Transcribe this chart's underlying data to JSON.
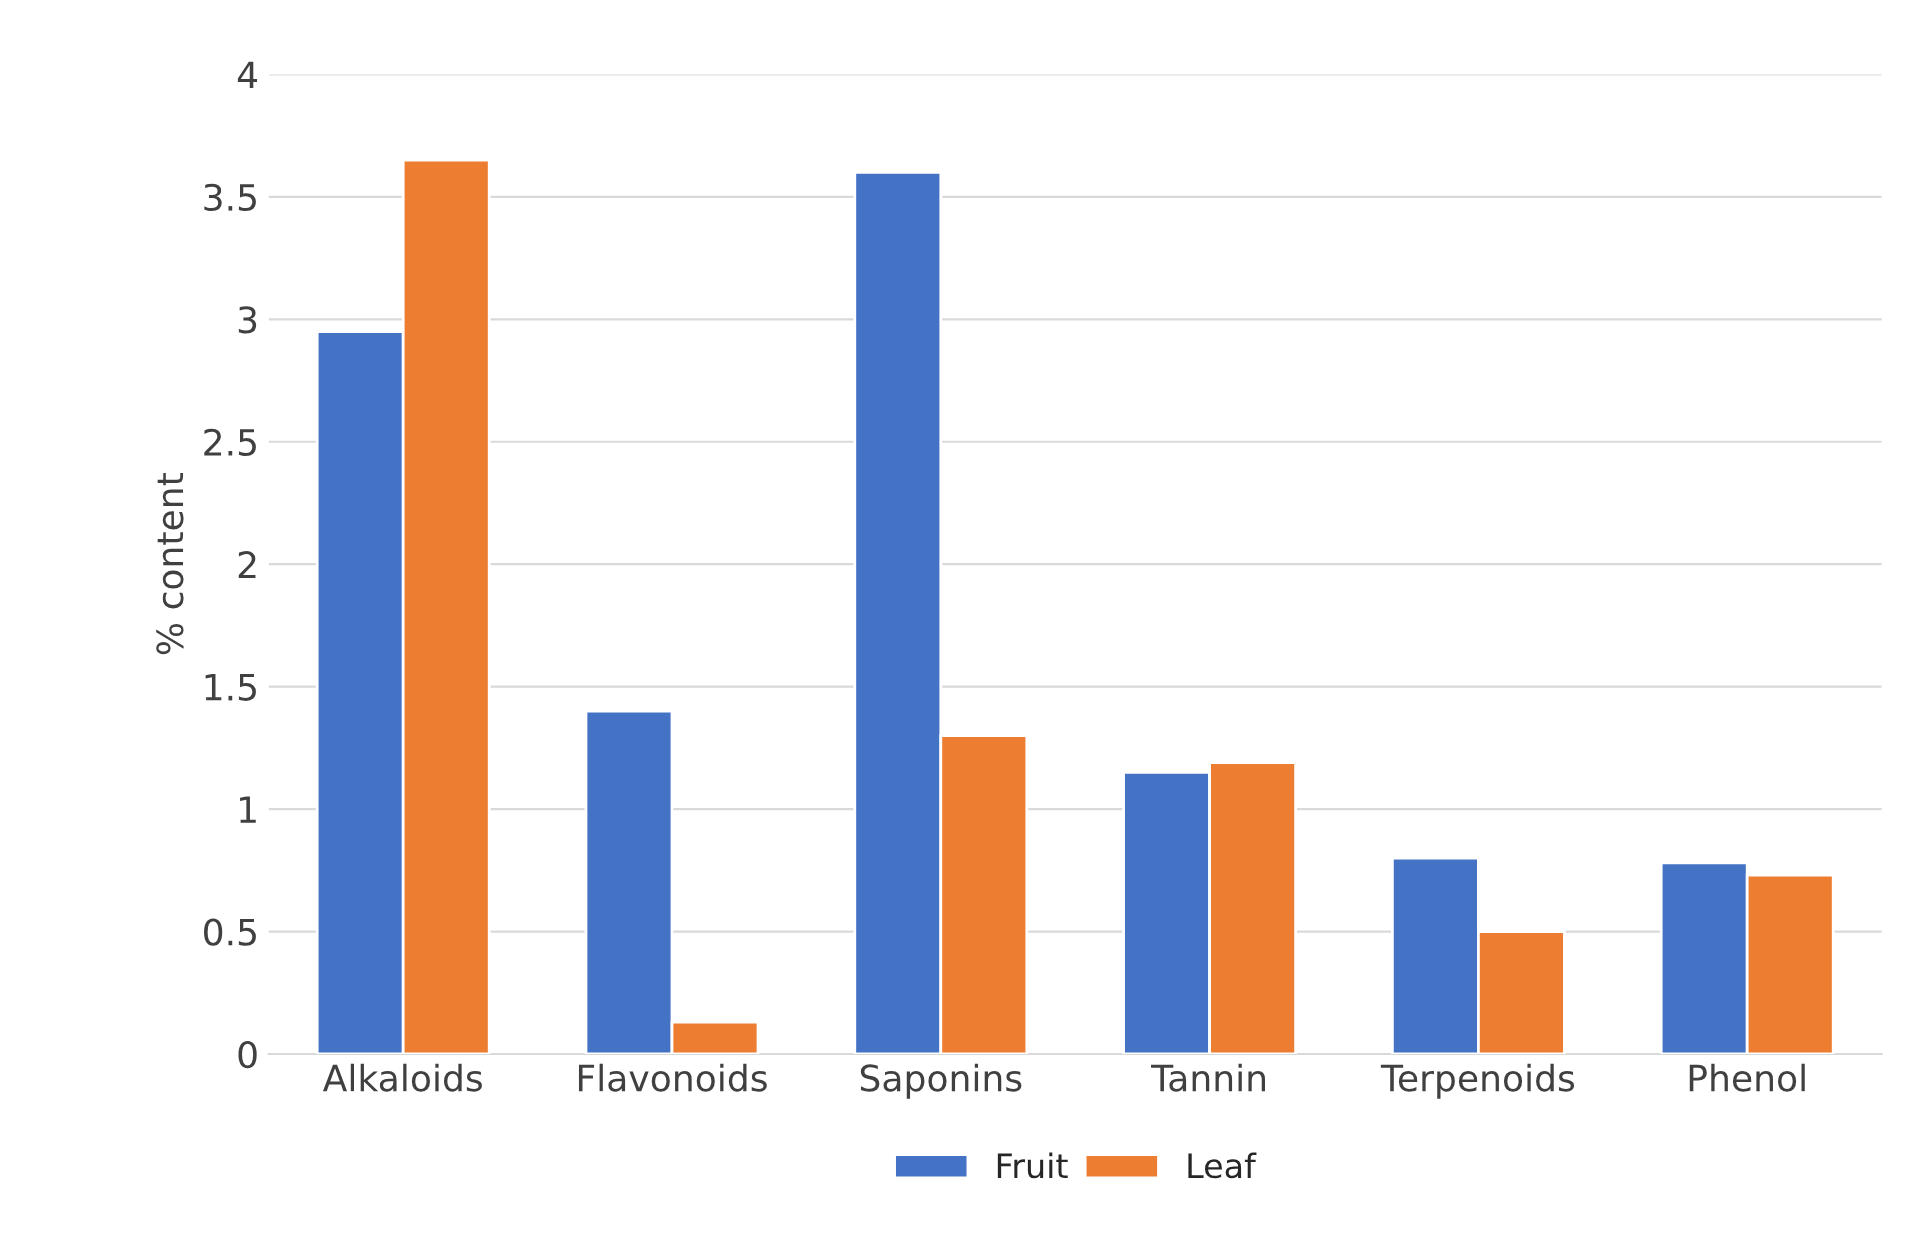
{
  "chart_data": {
    "type": "bar",
    "ylabel": "% content",
    "categories": [
      "Alkaloids",
      "Flavonoids",
      "Saponins",
      "Tannin",
      "Terpenoids",
      "Phenol"
    ],
    "series": [
      {
        "name": "Fruit",
        "color": "#4472c4",
        "values": [
          2.95,
          1.4,
          3.6,
          1.15,
          0.8,
          0.78
        ]
      },
      {
        "name": "Leaf",
        "color": "#ed7d31",
        "values": [
          3.65,
          0.13,
          1.3,
          1.19,
          0.5,
          0.73
        ]
      }
    ],
    "ylim": [
      0,
      4
    ],
    "yticks": [
      0,
      {
        "value": 0.5,
        "label": "0.5"
      },
      1,
      {
        "value": 1.5,
        "label": "1.5"
      },
      2,
      {
        "value": 2.5,
        "label": "2.5"
      },
      3,
      {
        "value": 3.5,
        "label": "3.5"
      },
      4
    ],
    "grid": "y",
    "legend": "bottom"
  }
}
